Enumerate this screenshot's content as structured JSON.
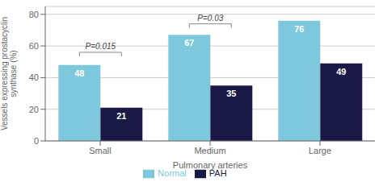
{
  "chart_data": {
    "type": "bar",
    "categories": [
      "Small",
      "Medium",
      "Large"
    ],
    "series": [
      {
        "name": "Normal",
        "color": "#7DC8DC",
        "values": [
          48,
          67,
          76
        ]
      },
      {
        "name": "PAH",
        "color": "#1A1845",
        "values": [
          21,
          35,
          49
        ]
      }
    ],
    "xlabel": "Pulmonary arteries",
    "ylabel": "Vessels expressing prostacyclin\nsynthase (%)",
    "ylim": [
      0,
      85
    ],
    "yticks": [
      0,
      20,
      40,
      60,
      80
    ],
    "grid": true,
    "data_labels": true,
    "legend": "bottom",
    "annotations": [
      {
        "text": "P=0.015",
        "category": "Small",
        "y": 58,
        "bracket_y": 56,
        "bracket_h": 2.5
      },
      {
        "text": "P=0.03",
        "category": "Medium",
        "y": 76,
        "bracket_y": 74,
        "bracket_h": 2.5
      }
    ]
  }
}
